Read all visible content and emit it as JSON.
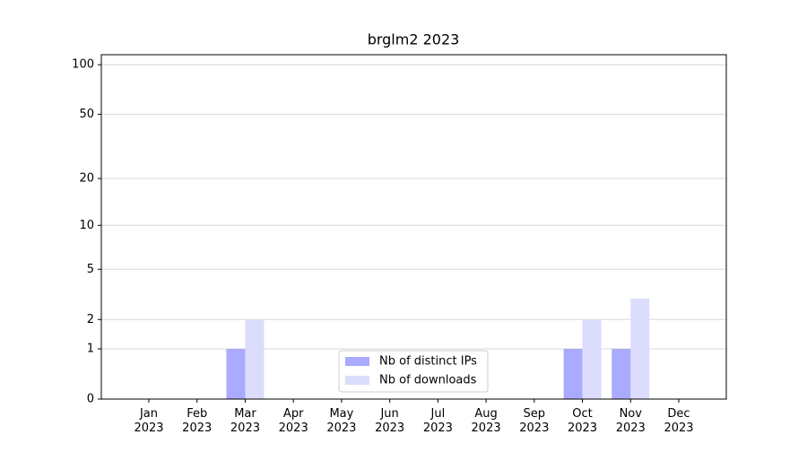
{
  "chart_data": {
    "type": "bar",
    "title": "brglm2 2023",
    "categories": [
      "Jan 2023",
      "Feb 2023",
      "Mar 2023",
      "Apr 2023",
      "May 2023",
      "Jun 2023",
      "Jul 2023",
      "Aug 2023",
      "Sep 2023",
      "Oct 2023",
      "Nov 2023",
      "Dec 2023"
    ],
    "series": [
      {
        "name": "Nb of distinct IPs",
        "color": "#aaaaff",
        "values": [
          0,
          0,
          1,
          0,
          0,
          0,
          0,
          0,
          0,
          1,
          1,
          0
        ]
      },
      {
        "name": "Nb of downloads",
        "color": "#dcdcfc",
        "values": [
          0,
          0,
          2,
          0,
          0,
          0,
          0,
          0,
          0,
          2,
          3,
          0
        ]
      }
    ],
    "yscale": "log1p",
    "ylim": [
      0,
      115
    ],
    "yticks": [
      0,
      1,
      2,
      5,
      10,
      20,
      50,
      100
    ],
    "grid": true,
    "legend": "lower center"
  }
}
